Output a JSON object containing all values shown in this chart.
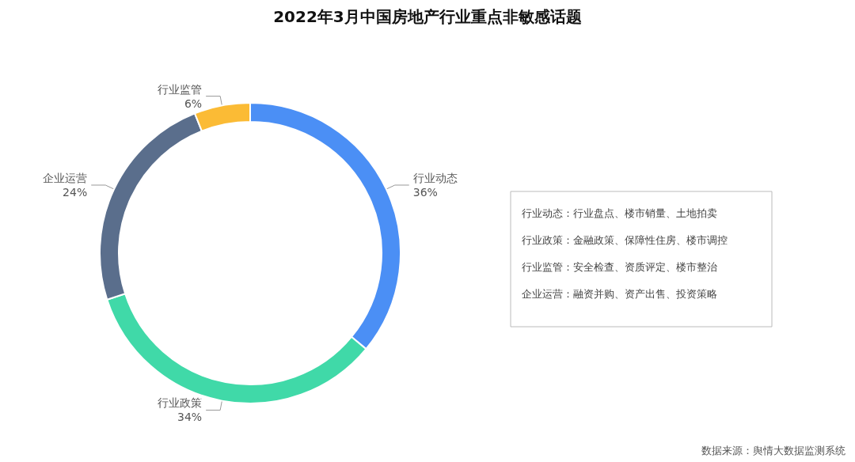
{
  "chart_data": {
    "type": "donut",
    "title": "2022年3月中国房地产行业重点非敏感话题",
    "categories": [
      "行业动态",
      "行业政策",
      "企业运营",
      "行业监管"
    ],
    "values": [
      36,
      34,
      24,
      6
    ],
    "colors": [
      "#4b8ff5",
      "#40d9a8",
      "#5a6e8c",
      "#fbbb35"
    ],
    "legend": false,
    "value_labels": [
      "36%",
      "34%",
      "24%",
      "6%"
    ],
    "annotations": [
      "行业动态：行业盘点、楼市销量、土地拍卖",
      "行业政策：金融政策、保障性住房、楼市调控",
      "行业监管：安全检查、资质评定、楼市整治",
      "企业运营：融资并购、资产出售、投资策略",
      "数据来源：舆情大数据监测系统"
    ]
  }
}
